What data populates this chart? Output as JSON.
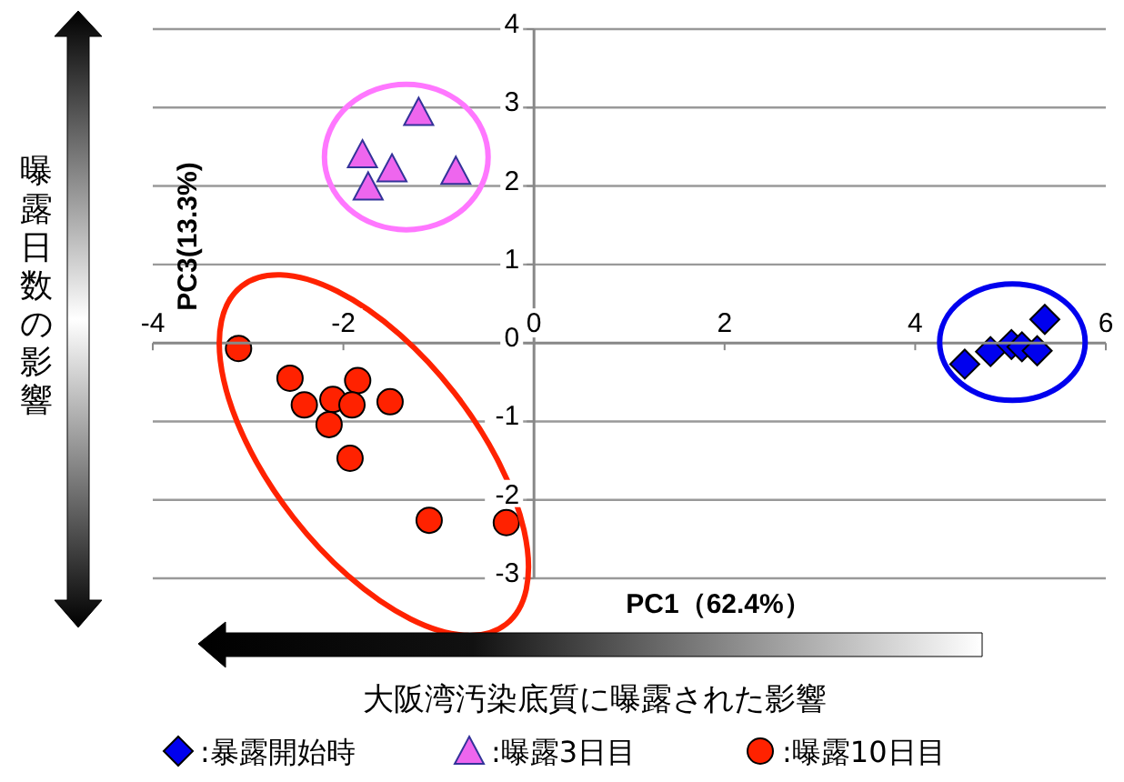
{
  "chart_data": {
    "type": "scatter",
    "xlabel": "PC1（62.4%）",
    "ylabel": "PC3(13.3%)",
    "annotations": [
      "曝露日数の影響",
      "大阪湾汚染底質に曝露された影響"
    ],
    "xlim": [
      -4,
      6
    ],
    "xticks": [
      -4,
      -2,
      0,
      2,
      4,
      6
    ],
    "ylim": [
      -3,
      4
    ],
    "yticks": [
      -3,
      -2,
      -1,
      0,
      1,
      2,
      3,
      4
    ],
    "grid": "y",
    "legend": "bottom",
    "series": [
      {
        "name": ":暴露開始時",
        "color": "#0000ee",
        "marker": "diamond",
        "x": [
          4.52,
          4.79,
          5.01,
          5.12,
          5.28,
          5.36
        ],
        "values": [
          -0.27,
          -0.11,
          -0.02,
          -0.05,
          -0.1,
          0.3
        ]
      },
      {
        "name": ":曝露3日目",
        "color": "#ee66ee",
        "marker": "triangle",
        "x": [
          -1.21,
          -1.8,
          -1.49,
          -1.74,
          -0.82
        ],
        "values": [
          2.94,
          2.4,
          2.22,
          1.99,
          2.19
        ]
      },
      {
        "name": ":曝露10日目",
        "color": "#ff2200",
        "marker": "circle",
        "x": [
          -3.1,
          -2.56,
          -2.41,
          -2.11,
          -1.85,
          -1.91,
          -1.51,
          -2.15,
          -1.93,
          -1.1,
          -0.29
        ],
        "values": [
          -0.07,
          -0.45,
          -0.79,
          -0.72,
          -0.48,
          -0.79,
          -0.75,
          -1.04,
          -1.47,
          -2.26,
          -2.29
        ]
      }
    ]
  }
}
